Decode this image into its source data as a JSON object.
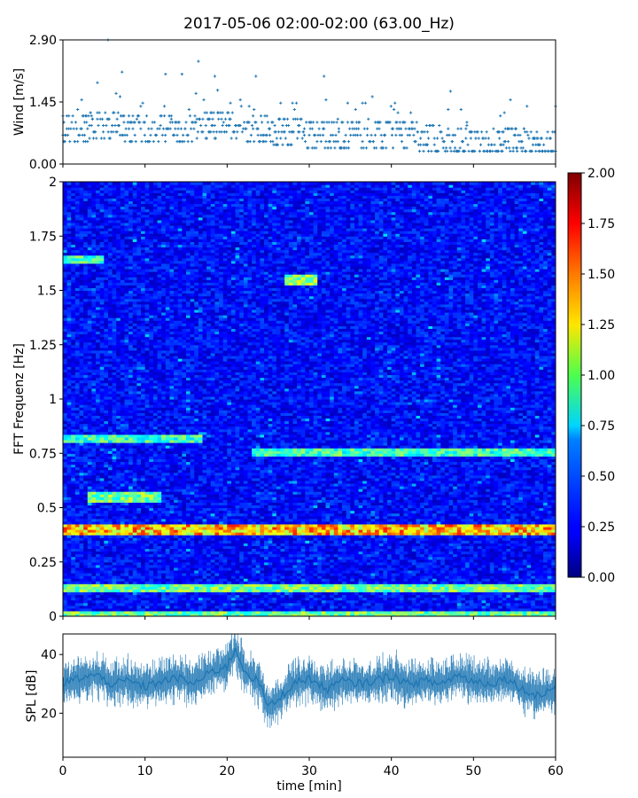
{
  "figure": {
    "title": "2017-05-06 02:00-02:00 (63.00_Hz)"
  },
  "chart_data": [
    {
      "type": "scatter",
      "ylabel": "Wind [m/s]",
      "xlim": [
        0,
        60
      ],
      "ylim": [
        0,
        2.9
      ],
      "yticks": [
        "0.00",
        "1.45",
        "2.90"
      ],
      "color": "#1f77b4",
      "marker": "+",
      "series": [
        {
          "x": [
            0,
            5,
            10,
            15,
            20,
            25,
            30,
            35,
            40,
            45,
            50,
            55,
            60
          ],
          "y": [
            0.8,
            0.9,
            0.8,
            0.85,
            0.9,
            0.8,
            0.7,
            0.65,
            0.7,
            0.6,
            0.45,
            0.5,
            0.45
          ]
        }
      ],
      "outliers": {
        "x": [
          4.2,
          5.5,
          7.2,
          12.5,
          14.5,
          16.5,
          18.5,
          23.5,
          31.8,
          47.2,
          54.5
        ],
        "y": [
          1.9,
          2.9,
          2.15,
          2.1,
          2.1,
          2.4,
          2.05,
          2.05,
          2.05,
          1.7,
          1.5
        ]
      }
    },
    {
      "type": "heatmap",
      "ylabel": "FFT Frequenz [Hz]",
      "xlim": [
        0,
        60
      ],
      "ylim": [
        0,
        2
      ],
      "yticks": [
        "0",
        "0.25",
        "0.5",
        "0.75",
        "1",
        "1.25",
        "1.5",
        "1.75",
        "2"
      ],
      "colormap": "jet",
      "colorbar": {
        "range": [
          0,
          2
        ],
        "ticks": [
          "0.00",
          "0.25",
          "0.50",
          "0.75",
          "1.00",
          "1.25",
          "1.50",
          "1.75",
          "2.00"
        ]
      },
      "bands": [
        {
          "f": 0.4,
          "level": 1.7,
          "x_start": 0,
          "x_end": 60
        },
        {
          "f": 0.13,
          "level": 1.2,
          "x_start": 0,
          "x_end": 60
        },
        {
          "f": 0.01,
          "level": 1.2,
          "x_start": 0,
          "x_end": 60
        },
        {
          "f": 0.76,
          "level": 1.1,
          "x_start": 23,
          "x_end": 60
        },
        {
          "f": 0.82,
          "level": 1.1,
          "x_start": 0,
          "x_end": 17
        },
        {
          "f": 1.55,
          "level": 1.3,
          "x_start": 27,
          "x_end": 31
        },
        {
          "f": 1.64,
          "level": 1.1,
          "x_start": 0,
          "x_end": 5
        },
        {
          "f": 0.55,
          "level": 1.2,
          "x_start": 3,
          "x_end": 12
        }
      ]
    },
    {
      "type": "area",
      "ylabel": "SPL [dB]",
      "xlabel": "time [min]",
      "xlim": [
        0,
        60
      ],
      "ylim": [
        5,
        47
      ],
      "yticks": [
        "20",
        "40"
      ],
      "xticks": [
        "0",
        "10",
        "20",
        "30",
        "40",
        "50",
        "60"
      ],
      "color": "#1f77b4",
      "series": [
        {
          "x": [
            0,
            2,
            4,
            6,
            8,
            10,
            12,
            14,
            16,
            18,
            20,
            21,
            22,
            24,
            25,
            26,
            28,
            30,
            32,
            34,
            36,
            38,
            40,
            42,
            44,
            46,
            48,
            50,
            52,
            54,
            56,
            58,
            60
          ],
          "y": [
            30,
            32,
            33,
            30,
            31,
            29,
            31,
            32,
            30,
            34,
            36,
            42,
            35,
            30,
            22,
            24,
            30,
            32,
            28,
            31,
            30,
            31,
            33,
            30,
            31,
            30,
            33,
            31,
            30,
            32,
            28,
            26,
            29
          ]
        }
      ]
    }
  ]
}
